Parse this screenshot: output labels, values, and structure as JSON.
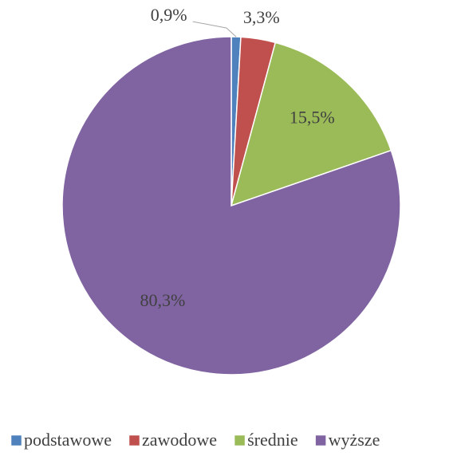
{
  "chart_data": {
    "type": "pie",
    "categories": [
      "podstawowe",
      "zawodowe",
      "średnie",
      "wyższe"
    ],
    "values": [
      0.9,
      3.3,
      15.5,
      80.3
    ],
    "value_labels": [
      "0,9%",
      "3,3%",
      "15,5%",
      "80,3%"
    ],
    "colors": [
      "#4f81bd",
      "#c0504d",
      "#9bbb59",
      "#8064a2"
    ],
    "legend": "bottom"
  }
}
